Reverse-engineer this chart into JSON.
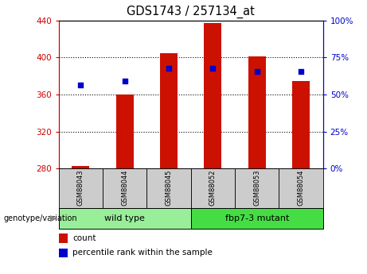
{
  "title": "GDS1743 / 257134_at",
  "categories": [
    "GSM88043",
    "GSM88044",
    "GSM88045",
    "GSM88052",
    "GSM88053",
    "GSM88054"
  ],
  "bar_base": 280,
  "bar_tops": [
    283,
    360,
    405,
    437,
    401,
    375
  ],
  "percentile_values": [
    370,
    375,
    388,
    388,
    385,
    385
  ],
  "ylim": [
    280,
    440
  ],
  "yticks": [
    280,
    320,
    360,
    400,
    440
  ],
  "y2lim": [
    0,
    100
  ],
  "y2ticks": [
    0,
    25,
    50,
    75,
    100
  ],
  "bar_color": "#cc1100",
  "dot_color": "#0000cc",
  "title_fontsize": 10.5,
  "groups": [
    {
      "label": "wild type",
      "indices": [
        0,
        1,
        2
      ],
      "color": "#99ee99"
    },
    {
      "label": "fbp7-3 mutant",
      "indices": [
        3,
        4,
        5
      ],
      "color": "#44dd44"
    }
  ],
  "group_label": "genotype/variation",
  "legend_count_label": "count",
  "legend_pct_label": "percentile rank within the sample",
  "tick_bg_color": "#cccccc",
  "left_color": "#cc0000",
  "right_color": "#0000cc",
  "grid_lines": [
    320,
    360,
    400
  ],
  "bar_width": 0.4
}
